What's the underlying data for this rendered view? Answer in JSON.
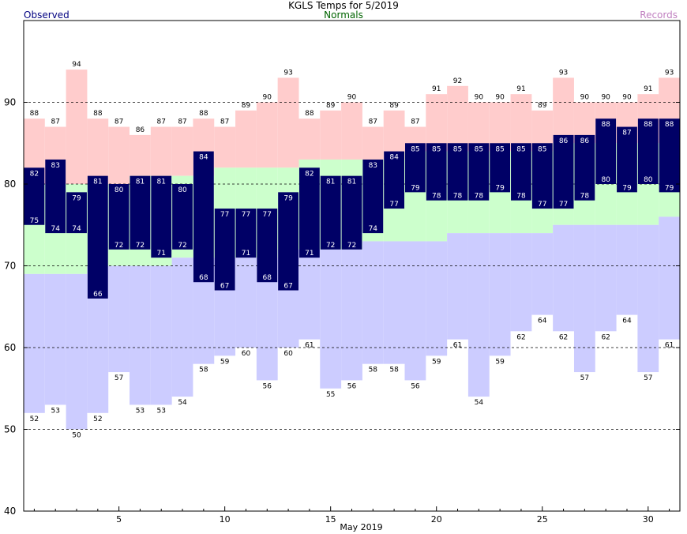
{
  "header": {
    "title": "KGLS Temps for 5/2019",
    "legend_observed": "Observed",
    "legend_normals": "Normals",
    "legend_records": "Records"
  },
  "colors": {
    "observed": "#000066",
    "normal": "#ccffcc",
    "record_high": "#ffcccc",
    "record_low": "#ccccff",
    "observed_text": "#000080",
    "normals_text": "#006400",
    "records_text": "#c080c0"
  },
  "chart_data": {
    "type": "bar",
    "title": "KGLS Temps for 5/2019",
    "xlabel": "May 2019",
    "ylabel": "",
    "ylim": [
      40,
      100
    ],
    "y_ticks": [
      40,
      50,
      60,
      70,
      80,
      90
    ],
    "x_ticks": [
      5,
      10,
      15,
      20,
      25,
      30
    ],
    "x_range": [
      0.5,
      31.5
    ],
    "gridlines_dashed": [
      50,
      60,
      70,
      80,
      90
    ],
    "days": [
      1,
      2,
      3,
      4,
      5,
      6,
      7,
      8,
      9,
      10,
      11,
      12,
      13,
      14,
      15,
      16,
      17,
      18,
      19,
      20,
      21,
      22,
      23,
      24,
      25,
      26,
      27,
      28,
      29,
      30,
      31
    ],
    "series": [
      {
        "name": "Records",
        "key": "record_high",
        "values": [
          88,
          87,
          94,
          88,
          87,
          86,
          87,
          87,
          88,
          87,
          89,
          90,
          93,
          88,
          89,
          90,
          87,
          89,
          87,
          91,
          92,
          90,
          90,
          91,
          89,
          93,
          90,
          90,
          90,
          91,
          93
        ]
      },
      {
        "name": "Records",
        "key": "record_low",
        "values": [
          52,
          53,
          50,
          52,
          57,
          53,
          53,
          54,
          58,
          59,
          60,
          56,
          60,
          61,
          55,
          56,
          58,
          58,
          56,
          59,
          61,
          54,
          59,
          62,
          64,
          62,
          57,
          62,
          64,
          57,
          61
        ]
      },
      {
        "name": "Normals",
        "key": "normal_high",
        "values": [
          80,
          80,
          80,
          80,
          80,
          81,
          81,
          81,
          81,
          82,
          82,
          82,
          82,
          83,
          83,
          83,
          83,
          83,
          84,
          84,
          84,
          84,
          84,
          84,
          84,
          85,
          85,
          85,
          85,
          85,
          85
        ]
      },
      {
        "name": "Normals",
        "key": "normal_low",
        "values": [
          69,
          69,
          69,
          70,
          70,
          70,
          70,
          71,
          71,
          71,
          71,
          71,
          72,
          72,
          72,
          72,
          73,
          73,
          73,
          73,
          74,
          74,
          74,
          74,
          74,
          75,
          75,
          75,
          75,
          75,
          76
        ]
      },
      {
        "name": "Observed",
        "key": "observed_high",
        "values": [
          82,
          83,
          79,
          81,
          80,
          81,
          81,
          80,
          84,
          77,
          77,
          77,
          79,
          82,
          81,
          81,
          83,
          84,
          85,
          85,
          85,
          85,
          85,
          85,
          85,
          86,
          86,
          88,
          87,
          88,
          88
        ]
      },
      {
        "name": "Observed",
        "key": "observed_low",
        "values": [
          75,
          74,
          74,
          66,
          72,
          72,
          71,
          72,
          68,
          67,
          71,
          68,
          67,
          71,
          72,
          72,
          74,
          77,
          79,
          78,
          78,
          78,
          79,
          78,
          77,
          77,
          78,
          80,
          79,
          80,
          79
        ]
      }
    ]
  }
}
